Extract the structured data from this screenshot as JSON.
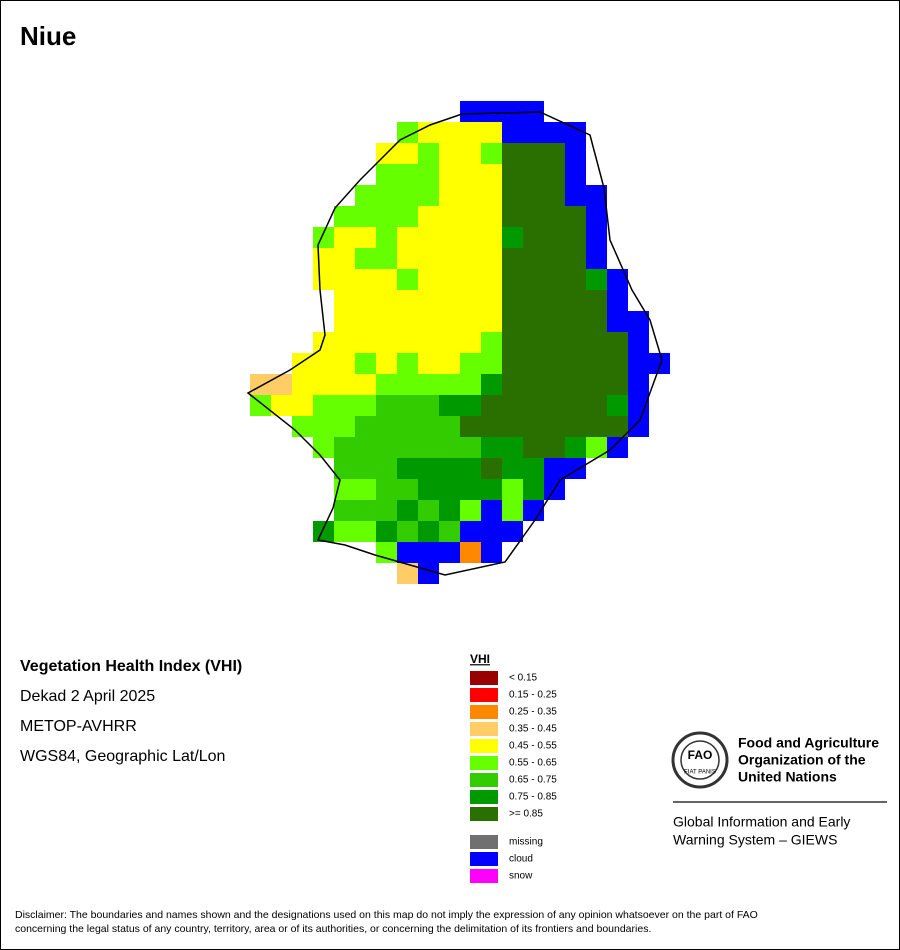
{
  "header": {
    "title": "Niue"
  },
  "info": [
    "Vegetation Health Index (VHI)",
    "Dekad 2 April 2025",
    "METOP-AVHRR",
    "WGS84, Geographic Lat/Lon"
  ],
  "legend": {
    "title": "VHI",
    "classes": [
      {
        "label": "< 0.15",
        "color": "#990000"
      },
      {
        "label": "0.15 - 0.25",
        "color": "#ff0000"
      },
      {
        "label": "0.25 - 0.35",
        "color": "#ff8800"
      },
      {
        "label": "0.35 - 0.45",
        "color": "#ffcc66"
      },
      {
        "label": "0.45 - 0.55",
        "color": "#ffff00"
      },
      {
        "label": "0.55 - 0.65",
        "color": "#66ff00"
      },
      {
        "label": "0.65 - 0.75",
        "color": "#33cc00"
      },
      {
        "label": "0.75 - 0.85",
        "color": "#009900"
      },
      {
        "label": ">= 0.85",
        "color": "#2a7000"
      }
    ],
    "other": [
      {
        "label": "missing",
        "color": "#707070"
      },
      {
        "label": "cloud",
        "color": "#0000ff"
      },
      {
        "label": "snow",
        "color": "#ff00ff"
      }
    ]
  },
  "organization": {
    "logo_letters": "FAO",
    "logo_motto": "FIAT PANIS",
    "name": [
      "Food and Agriculture",
      "Organization of the",
      "United Nations"
    ],
    "system": [
      "Global Information and Early",
      "Warning System – GIEWS"
    ]
  },
  "disclaimer": [
    "Disclaimer: The boundaries and names shown and the designations used on this map do not imply the expression of any opinion whatsoever on the part of FAO",
    "concerning the legal status of any country, territory, area or of its authorities, or concerning the delimitation of its frontiers and boundaries."
  ]
}
